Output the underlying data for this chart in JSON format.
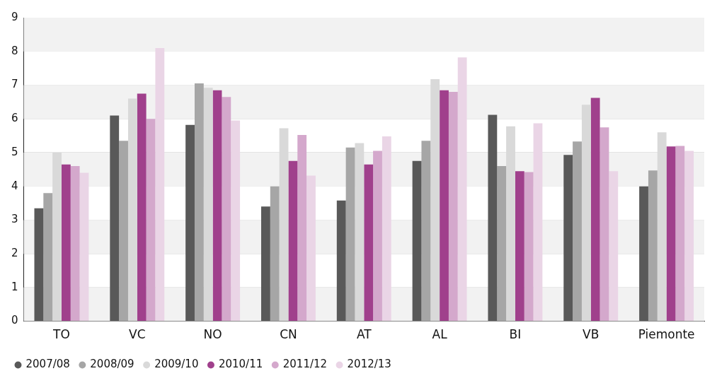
{
  "chart_data": {
    "type": "bar",
    "categories": [
      "TO",
      "VC",
      "NO",
      "CN",
      "AT",
      "AL",
      "BI",
      "VB",
      "Piemonte"
    ],
    "series": [
      {
        "name": "2007/08",
        "color": "#595959",
        "values": [
          3.35,
          6.1,
          5.82,
          3.4,
          3.58,
          4.75,
          6.12,
          4.93,
          4.0
        ]
      },
      {
        "name": "2008/09",
        "color": "#a6a6a6",
        "values": [
          3.8,
          5.35,
          7.05,
          4.0,
          5.15,
          5.35,
          4.6,
          5.33,
          4.47
        ]
      },
      {
        "name": "2009/10",
        "color": "#d9d9d9",
        "values": [
          5.0,
          6.6,
          6.92,
          5.72,
          5.28,
          7.18,
          5.78,
          6.42,
          5.6
        ]
      },
      {
        "name": "2010/11",
        "color": "#a0408c",
        "values": [
          4.65,
          6.75,
          6.85,
          4.75,
          4.65,
          6.85,
          4.45,
          6.62,
          5.18
        ]
      },
      {
        "name": "2011/12",
        "color": "#d4a8cc",
        "values": [
          4.6,
          6.0,
          6.65,
          5.52,
          5.05,
          6.8,
          4.42,
          5.75,
          5.2
        ]
      },
      {
        "name": "2012/13",
        "color": "#ead5e6",
        "values": [
          4.4,
          8.1,
          5.95,
          4.32,
          5.48,
          7.82,
          5.87,
          4.45,
          5.05
        ]
      }
    ],
    "ylim": [
      0,
      9
    ],
    "yticks": [
      0,
      1,
      2,
      3,
      4,
      5,
      6,
      7,
      8,
      9
    ],
    "grid": "y",
    "legend": "bottom left"
  }
}
